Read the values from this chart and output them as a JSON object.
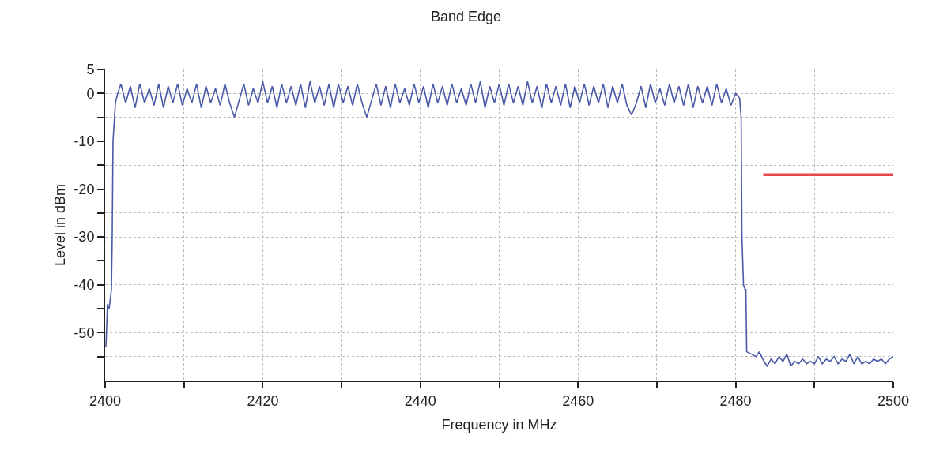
{
  "chart_data": {
    "type": "line",
    "title": "Band Edge",
    "xlabel": "Frequency in MHz",
    "ylabel": "Level in dBm",
    "xlim": [
      2400,
      2500
    ],
    "ylim": [
      -60,
      5
    ],
    "xticks": [
      2400,
      {
        "value": 2410,
        "label": null
      },
      2420,
      {
        "value": 2430,
        "label": null
      },
      2440,
      {
        "value": 2450,
        "label": null
      },
      2460,
      {
        "value": 2470,
        "label": null
      },
      2480,
      {
        "value": 2490,
        "label": null
      },
      2500
    ],
    "yticks": [
      5,
      0,
      {
        "value": -5,
        "label": null
      },
      -10,
      {
        "value": -15,
        "label": null
      },
      -20,
      {
        "value": -25,
        "label": null
      },
      -30,
      {
        "value": -35,
        "label": null
      },
      -40,
      {
        "value": -45,
        "label": null
      },
      -50,
      {
        "value": -55,
        "label": null
      }
    ],
    "grid": true,
    "marker": "none",
    "line_style": "solid",
    "series": [
      {
        "color": "#4a5aa8",
        "x": [
          2400.1,
          2400.3,
          2400.5,
          2400.8,
          2400.9,
          2401.0,
          2401.3,
          2401.6,
          2402.0,
          2402.6,
          2403.2,
          2403.8,
          2404.4,
          2405.0,
          2405.6,
          2406.2,
          2406.8,
          2407.4,
          2408.0,
          2408.6,
          2409.2,
          2409.8,
          2410.4,
          2411.0,
          2411.6,
          2412.2,
          2412.8,
          2413.4,
          2414.0,
          2414.6,
          2415.2,
          2415.8,
          2416.4,
          2417.0,
          2417.6,
          2418.2,
          2418.8,
          2419.4,
          2420.0,
          2420.6,
          2421.2,
          2421.8,
          2422.4,
          2423.0,
          2423.6,
          2424.2,
          2424.8,
          2425.4,
          2426.0,
          2426.6,
          2427.2,
          2427.8,
          2428.4,
          2429.0,
          2429.6,
          2430.2,
          2430.8,
          2431.4,
          2432.0,
          2432.6,
          2433.2,
          2433.8,
          2434.4,
          2435.0,
          2435.6,
          2436.2,
          2436.8,
          2437.4,
          2438.0,
          2438.6,
          2439.2,
          2439.8,
          2440.4,
          2441.0,
          2441.6,
          2442.2,
          2442.8,
          2443.4,
          2444.0,
          2444.6,
          2445.2,
          2445.8,
          2446.4,
          2447.0,
          2447.6,
          2448.2,
          2448.8,
          2449.4,
          2450.0,
          2450.6,
          2451.2,
          2451.8,
          2452.4,
          2453.0,
          2453.6,
          2454.2,
          2454.8,
          2455.4,
          2456.0,
          2456.6,
          2457.2,
          2457.8,
          2458.4,
          2459.0,
          2459.6,
          2460.2,
          2460.8,
          2461.4,
          2462.0,
          2462.6,
          2463.2,
          2463.8,
          2464.4,
          2465.0,
          2465.6,
          2466.2,
          2466.8,
          2467.4,
          2468.0,
          2468.6,
          2469.2,
          2469.8,
          2470.4,
          2471.0,
          2471.6,
          2472.2,
          2472.8,
          2473.4,
          2474.0,
          2474.6,
          2475.2,
          2475.8,
          2476.4,
          2477.0,
          2477.6,
          2478.2,
          2478.8,
          2479.4,
          2480.0,
          2480.5,
          2480.7,
          2480.8,
          2481.0,
          2481.2,
          2481.3,
          2481.4,
          2482.0,
          2482.6,
          2483.0,
          2483.6,
          2484.0,
          2484.5,
          2485.0,
          2485.5,
          2486.0,
          2486.5,
          2487.0,
          2487.5,
          2488.0,
          2488.5,
          2489.0,
          2489.5,
          2490.0,
          2490.5,
          2491.0,
          2491.5,
          2492.0,
          2492.5,
          2493.0,
          2493.5,
          2494.0,
          2494.5,
          2495.0,
          2495.5,
          2496.0,
          2496.5,
          2497.0,
          2497.5,
          2498.0,
          2498.5,
          2499.0,
          2499.5,
          2500.0
        ],
        "values": [
          -53,
          -44,
          -45,
          -41,
          -30,
          -10,
          -2,
          0,
          2,
          -2,
          1.5,
          -3,
          2,
          -2,
          1,
          -2.5,
          2,
          -3,
          1.5,
          -2,
          2,
          -2.5,
          1,
          -2,
          2,
          -3,
          1.5,
          -2,
          1,
          -2.5,
          2,
          -2,
          -5,
          -1.5,
          2,
          -2.5,
          1,
          -2,
          2.5,
          -2,
          1.5,
          -3,
          2,
          -2,
          1.5,
          -2.5,
          2,
          -3,
          2.5,
          -2,
          1.5,
          -2.5,
          2,
          -3,
          2,
          -2,
          1.5,
          -2.5,
          2,
          -2,
          -5,
          -1.5,
          2,
          -2.5,
          1.5,
          -3,
          2,
          -2,
          1,
          -2.5,
          2,
          -2,
          1.5,
          -3,
          2,
          -2,
          1.5,
          -2.5,
          2,
          -2,
          1,
          -2.5,
          2,
          -2,
          2.5,
          -3,
          1.5,
          -2,
          2,
          -2.5,
          2,
          -2,
          1.5,
          -2.5,
          2.5,
          -2,
          1.5,
          -3,
          2,
          -2,
          1.5,
          -2.5,
          2,
          -3,
          1.5,
          -2,
          2,
          -2.5,
          1.5,
          -2,
          2,
          -3,
          1.5,
          -2,
          2,
          -2.5,
          -4.5,
          -2,
          1.5,
          -3,
          2,
          -2,
          1,
          -2.5,
          2,
          -2,
          1.5,
          -2.5,
          2,
          -3,
          1.5,
          -2,
          1.5,
          -2.5,
          2,
          -2,
          1,
          -2.5,
          0,
          -1,
          -5,
          -30,
          -40,
          -41,
          -41,
          -54,
          -54.5,
          -55,
          -54,
          -56,
          -57,
          -55.5,
          -56.5,
          -55,
          -56,
          -54.5,
          -57,
          -56,
          -56.5,
          -55.5,
          -56.5,
          -56,
          -56.5,
          -55,
          -56.5,
          -55.5,
          -56,
          -55,
          -56.5,
          -55.5,
          -56,
          -54.5,
          -56.5,
          -55,
          -56.5,
          -56,
          -56.5,
          -55.5,
          -56,
          -55.5,
          -56.5,
          -55.5,
          -55
        ]
      },
      {
        "color": "#e84848",
        "x": [
          2483.5,
          2500
        ],
        "values": [
          -17,
          -17
        ]
      }
    ]
  }
}
